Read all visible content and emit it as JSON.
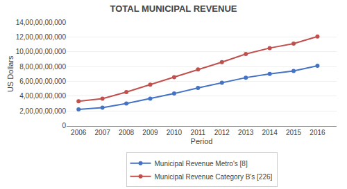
{
  "chart_data": {
    "type": "line",
    "title": "TOTAL MUNICIPAL REVENUE",
    "xlabel": "Period",
    "ylabel": "US Dollars",
    "x": [
      2006,
      2007,
      2008,
      2009,
      2010,
      2011,
      2012,
      2013,
      2014,
      2015,
      2016
    ],
    "series": [
      {
        "name": "Municipal Revenue Metro's [8]",
        "color": "#4472C4",
        "marker": "circle",
        "values": [
          2200000000,
          2450000000,
          3000000000,
          3650000000,
          4350000000,
          5100000000,
          5800000000,
          6500000000,
          7000000000,
          7400000000,
          8100000000
        ]
      },
      {
        "name": "Municipal Revenue Category B's [226]",
        "color": "#C0504D",
        "marker": "circle",
        "values": [
          3300000000,
          3650000000,
          4550000000,
          5550000000,
          6550000000,
          7600000000,
          8600000000,
          9700000000,
          10500000000,
          11100000000,
          12050000000
        ]
      }
    ],
    "xlim": [
      2005.5,
      2016.8
    ],
    "xticks": [
      2006,
      2007,
      2008,
      2009,
      2010,
      2011,
      2012,
      2013,
      2014,
      2015,
      2016
    ],
    "ylim": [
      0,
      14000000000
    ],
    "yticks": [
      0,
      {
        "value": 2000000000,
        "label": "2,00,00,00,000"
      },
      {
        "value": 4000000000,
        "label": "4,00,00,00,000"
      },
      {
        "value": 6000000000,
        "label": "6,00,00,00,000"
      },
      {
        "value": 8000000000,
        "label": "8,00,00,00,000"
      },
      {
        "value": 10000000000,
        "label": "10,00,00,00,000"
      },
      {
        "value": 12000000000,
        "label": "12,00,00,00,000"
      },
      {
        "value": 14000000000,
        "label": "14,00,00,00,000"
      }
    ],
    "grid": true,
    "legend": "bottom"
  }
}
